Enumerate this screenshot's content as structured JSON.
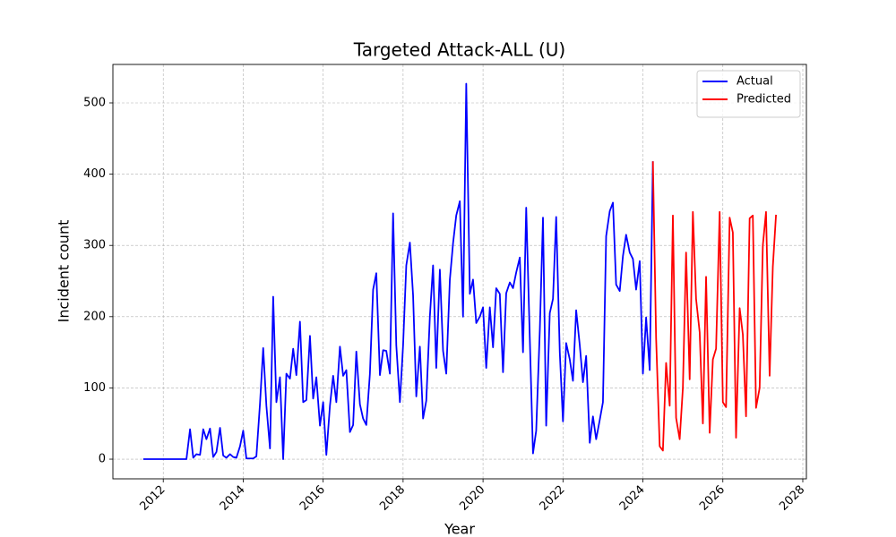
{
  "chart_data": {
    "type": "line",
    "title": "Targeted Attack-ALL (U)",
    "xlabel": "Year",
    "ylabel": "Incident count",
    "xlim": [
      2010.74,
      2028.09
    ],
    "ylim": [
      -27.6,
      554
    ],
    "xticks": [
      2012,
      2014,
      2016,
      2018,
      2020,
      2022,
      2024,
      2026,
      2028
    ],
    "yticks": [
      0,
      100,
      200,
      300,
      400,
      500
    ],
    "grid": true,
    "legend": "upper right",
    "series": [
      {
        "name": "Actual",
        "color": "#0000ff",
        "x": [
          2011.5,
          2012.58,
          2012.67,
          2012.75,
          2012.83,
          2012.92,
          2013.0,
          2013.08,
          2013.17,
          2013.25,
          2013.33,
          2013.42,
          2013.5,
          2013.58,
          2013.67,
          2013.75,
          2013.83,
          2013.92,
          2014.0,
          2014.08,
          2014.17,
          2014.25,
          2014.33,
          2014.42,
          2014.5,
          2014.58,
          2014.67,
          2014.75,
          2014.83,
          2014.92,
          2015.0,
          2015.08,
          2015.17,
          2015.25,
          2015.33,
          2015.42,
          2015.5,
          2015.58,
          2015.67,
          2015.75,
          2015.83,
          2015.92,
          2016.0,
          2016.08,
          2016.17,
          2016.25,
          2016.33,
          2016.42,
          2016.5,
          2016.58,
          2016.67,
          2016.75,
          2016.83,
          2016.92,
          2017.0,
          2017.08,
          2017.17,
          2017.25,
          2017.33,
          2017.42,
          2017.5,
          2017.58,
          2017.67,
          2017.75,
          2017.83,
          2017.92,
          2018.0,
          2018.08,
          2018.17,
          2018.25,
          2018.33,
          2018.42,
          2018.5,
          2018.58,
          2018.67,
          2018.75,
          2018.83,
          2018.92,
          2019.0,
          2019.08,
          2019.17,
          2019.25,
          2019.33,
          2019.42,
          2019.5,
          2019.58,
          2019.67,
          2019.75,
          2019.83,
          2019.92,
          2020.0,
          2020.08,
          2020.17,
          2020.25,
          2020.33,
          2020.42,
          2020.5,
          2020.58,
          2020.67,
          2020.75,
          2020.83,
          2020.92,
          2021.0,
          2021.08,
          2021.17,
          2021.25,
          2021.33,
          2021.42,
          2021.5,
          2021.58,
          2021.67,
          2021.75,
          2021.83,
          2021.92,
          2022.0,
          2022.08,
          2022.17,
          2022.25,
          2022.33,
          2022.42,
          2022.5,
          2022.58,
          2022.67,
          2022.75,
          2022.83,
          2022.92,
          2023.0,
          2023.08,
          2023.17,
          2023.25,
          2023.33,
          2023.42,
          2023.5,
          2023.58,
          2023.67,
          2023.75,
          2023.83,
          2023.92,
          2024.0,
          2024.08,
          2024.17,
          2024.25
        ],
        "values": [
          0,
          0,
          42,
          2,
          7,
          6,
          42,
          28,
          43,
          3,
          10,
          44,
          5,
          2,
          7,
          3,
          2,
          18,
          40,
          1,
          1,
          1,
          4,
          78,
          156,
          75,
          15,
          228,
          80,
          115,
          0,
          120,
          113,
          155,
          118,
          193,
          80,
          83,
          173,
          85,
          115,
          47,
          80,
          6,
          75,
          117,
          80,
          158,
          117,
          125,
          38,
          48,
          151,
          77,
          57,
          48,
          120,
          238,
          261,
          118,
          153,
          152,
          120,
          345,
          160,
          80,
          160,
          272,
          304,
          230,
          88,
          158,
          57,
          82,
          200,
          272,
          128,
          266,
          152,
          120,
          252,
          303,
          342,
          362,
          200,
          527,
          232,
          252,
          191,
          200,
          213,
          128,
          213,
          157,
          240,
          232,
          122,
          233,
          248,
          240,
          262,
          283,
          150,
          353,
          170,
          8,
          40,
          180,
          339,
          47,
          205,
          225,
          340,
          150,
          53,
          163,
          140,
          110,
          209,
          160,
          108,
          145,
          23,
          60,
          28,
          55,
          80,
          313,
          348,
          360,
          245,
          236,
          285,
          315,
          290,
          281,
          238,
          278,
          120,
          199,
          125,
          418
        ]
      },
      {
        "name": "Predicted",
        "color": "#ff0000",
        "x": [
          2024.25,
          2024.33,
          2024.42,
          2024.5,
          2024.58,
          2024.67,
          2024.75,
          2024.83,
          2024.92,
          2025.0,
          2025.08,
          2025.17,
          2025.25,
          2025.33,
          2025.42,
          2025.5,
          2025.58,
          2025.67,
          2025.75,
          2025.83,
          2025.92,
          2026.0,
          2026.08,
          2026.17,
          2026.25,
          2026.33,
          2026.42,
          2026.5,
          2026.58,
          2026.67,
          2026.75,
          2026.83,
          2026.92,
          2027.0,
          2027.08,
          2027.17,
          2027.25,
          2027.33
        ],
        "values": [
          418,
          170,
          18,
          12,
          135,
          75,
          342,
          58,
          28,
          100,
          290,
          112,
          347,
          225,
          178,
          50,
          256,
          37,
          140,
          155,
          347,
          80,
          73,
          339,
          318,
          30,
          212,
          175,
          60,
          338,
          342,
          72,
          100,
          300,
          347,
          117,
          270,
          343
        ]
      }
    ]
  }
}
